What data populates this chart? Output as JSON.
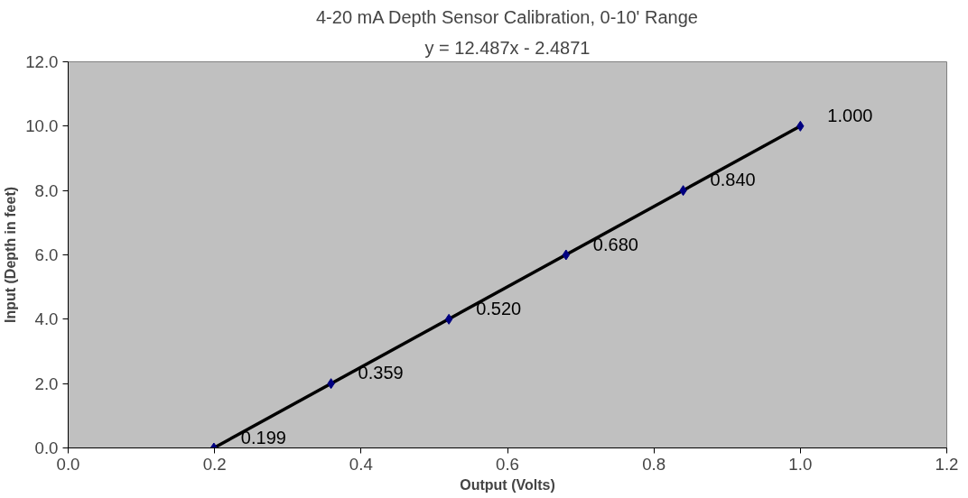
{
  "chart_data": {
    "type": "scatter",
    "title": "4-20 mA Depth Sensor Calibration, 0-10' Range",
    "subtitle": "y = 12.487x - 2.4871",
    "xlabel": "Output (Volts)",
    "ylabel": "Input (Depth in feet)",
    "xlim": [
      0,
      1.2
    ],
    "ylim": [
      0,
      12
    ],
    "xticks": [
      {
        "value": 0,
        "label": "0.0"
      },
      {
        "value": 0.2,
        "label": "0.2"
      },
      {
        "value": 0.4,
        "label": "0.4"
      },
      {
        "value": 0.6,
        "label": "0.6"
      },
      {
        "value": 0.8,
        "label": "0.8"
      },
      {
        "value": 1.0,
        "label": "1.0"
      },
      {
        "value": 1.2,
        "label": "1.2"
      }
    ],
    "yticks": [
      {
        "value": 0,
        "label": "0.0"
      },
      {
        "value": 2,
        "label": "2.0"
      },
      {
        "value": 4,
        "label": "4.0"
      },
      {
        "value": 6,
        "label": "6.0"
      },
      {
        "value": 8,
        "label": "8.0"
      },
      {
        "value": 10,
        "label": "10.0"
      },
      {
        "value": 12,
        "label": "12.0"
      }
    ],
    "grid": false,
    "series": [
      {
        "type": "line",
        "color": "#000000",
        "x": [
          0.199,
          1.0
        ],
        "values": [
          0,
          10
        ]
      },
      {
        "color": "#000080",
        "marker": "diamond",
        "x": [
          0.199,
          0.359,
          0.52,
          0.68,
          0.84,
          1.0
        ],
        "values": [
          0,
          2,
          4,
          6,
          8,
          10
        ]
      }
    ],
    "annotations": [
      {
        "text": "0.199",
        "x": 0.199,
        "y": 0
      },
      {
        "text": "0.359",
        "x": 0.359,
        "y": 2
      },
      {
        "text": "0.520",
        "x": 0.52,
        "y": 4
      },
      {
        "text": "0.680",
        "x": 0.68,
        "y": 6
      },
      {
        "text": "0.840",
        "x": 0.84,
        "y": 8
      },
      {
        "text": "1.000",
        "x": 1.0,
        "y": 10
      }
    ]
  }
}
